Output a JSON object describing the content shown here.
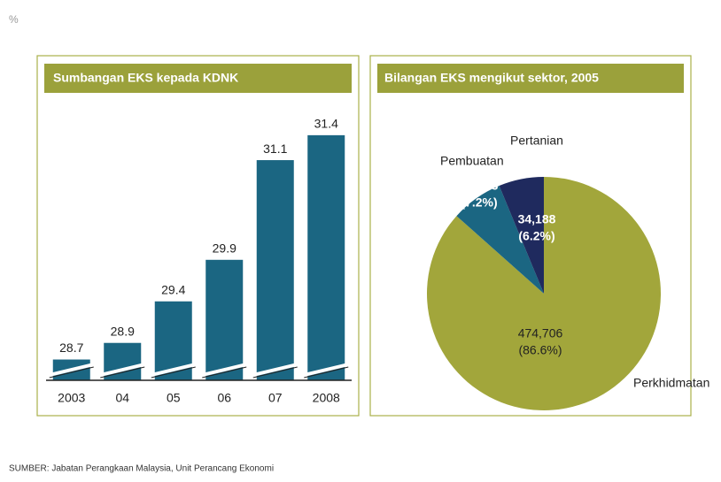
{
  "chart_data": [
    {
      "type": "bar",
      "title": "Sumbangan EKS kepada KDNK",
      "ylabel": "%",
      "categories": [
        "2003",
        "04",
        "05",
        "06",
        "07",
        "2008"
      ],
      "values": [
        28.7,
        28.9,
        29.4,
        29.9,
        31.1,
        31.4
      ],
      "color": "#1b6682",
      "ylim": [
        28.45,
        31.75
      ],
      "broken_axis": true
    },
    {
      "type": "pie",
      "title": "Bilangan EKS mengikut sektor, 2005",
      "categories": [
        "Perkhidmatan",
        "Pembuatan",
        "Pertanian"
      ],
      "values": [
        474706,
        39373,
        34188
      ],
      "value_labels": [
        "474,706",
        "39,373",
        "34,188"
      ],
      "percent_labels": [
        "(86.6%)",
        "(7.2%)",
        "(6.2%)"
      ],
      "colors": [
        "#a2a63b",
        "#1b6682",
        "#1f2a5e"
      ]
    }
  ],
  "source": "SUMBER: Jabatan Perangkaan Malaysia, Unit Perancang Ekonomi"
}
